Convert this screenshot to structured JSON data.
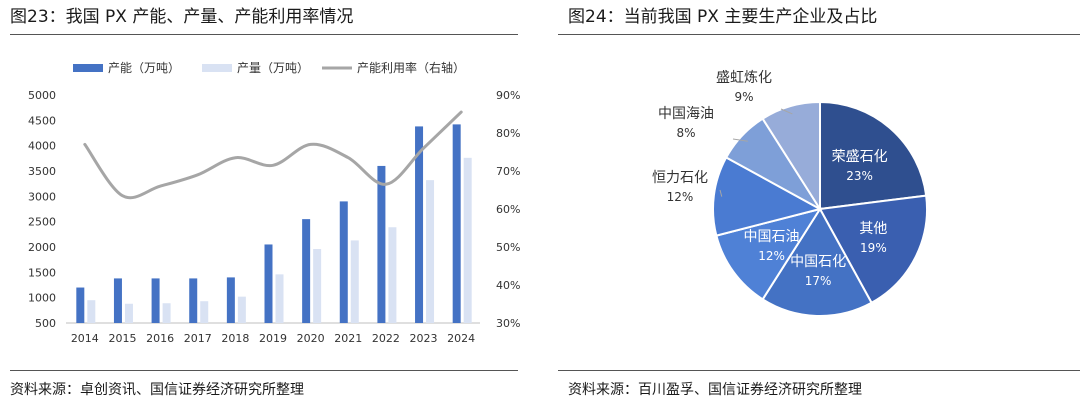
{
  "figures": [
    {
      "title": "图23：我国 PX 产能、产量、产能利用率情况",
      "source": "资料来源：卓创资讯、国信证券经济研究所整理"
    },
    {
      "title": "图24：当前我国 PX 主要生产企业及占比",
      "source": "资料来源：百川盈孚、国信证券经济研究所整理"
    }
  ],
  "colors": {
    "capacity": "#4472c4",
    "output": "#d9e2f3",
    "utilization": "#a6a6a6",
    "axis": "#bfbfbf",
    "rule": "#555555"
  },
  "chart_data": [
    {
      "type": "bar",
      "title": "我国 PX 产能、产量、产能利用率情况",
      "categories": [
        "2014",
        "2015",
        "2016",
        "2017",
        "2018",
        "2019",
        "2020",
        "2021",
        "2022",
        "2023",
        "2024"
      ],
      "series": [
        {
          "name": "产能（万吨）",
          "kind": "bar",
          "axis": "left",
          "values": [
            1200,
            1380,
            1380,
            1380,
            1400,
            2050,
            2550,
            2900,
            3600,
            4380,
            4420
          ]
        },
        {
          "name": "产量（万吨）",
          "kind": "bar",
          "axis": "left",
          "values": [
            950,
            880,
            890,
            930,
            1020,
            1460,
            1960,
            2130,
            2390,
            3320,
            3760
          ]
        },
        {
          "name": "产能利用率（右轴）",
          "kind": "line",
          "axis": "right",
          "values": [
            77,
            63.5,
            66,
            69,
            73.5,
            71.5,
            77,
            73.5,
            66.5,
            76,
            85.5
          ]
        }
      ],
      "ylim": [
        500,
        5000
      ],
      "yticks": [
        "500",
        "1000",
        "1500",
        "2000",
        "2500",
        "3000",
        "3500",
        "4000",
        "4500",
        "5000"
      ],
      "y2lim": [
        30,
        90
      ],
      "y2ticks": [
        "30%",
        "40%",
        "50%",
        "60%",
        "70%",
        "80%",
        "90%"
      ],
      "legend": "top",
      "grid": false
    },
    {
      "type": "pie",
      "title": "当前我国 PX 主要生产企业及占比",
      "slices": [
        {
          "label": "荣盛石化",
          "pct": "23%",
          "value": 23,
          "color": "#2f4f8f",
          "text_inside": true
        },
        {
          "label": "其他",
          "pct": "19%",
          "value": 19,
          "color": "#3a5fb0",
          "text_inside": true
        },
        {
          "label": "中国石化",
          "pct": "17%",
          "value": 17,
          "color": "#4472c4",
          "text_inside": true
        },
        {
          "label": "中国石油",
          "pct": "12%",
          "value": 12,
          "color": "#4f81d6",
          "text_inside": true
        },
        {
          "label": "恒力石化",
          "pct": "12%",
          "value": 12,
          "color": "#4a7bd2",
          "text_inside": false
        },
        {
          "label": "中国海油",
          "pct": "8%",
          "value": 8,
          "color": "#7e9fd8",
          "text_inside": false
        },
        {
          "label": "盛虹炼化",
          "pct": "9%",
          "value": 9,
          "color": "#97acd9",
          "text_inside": false
        }
      ],
      "legend": "none"
    }
  ]
}
